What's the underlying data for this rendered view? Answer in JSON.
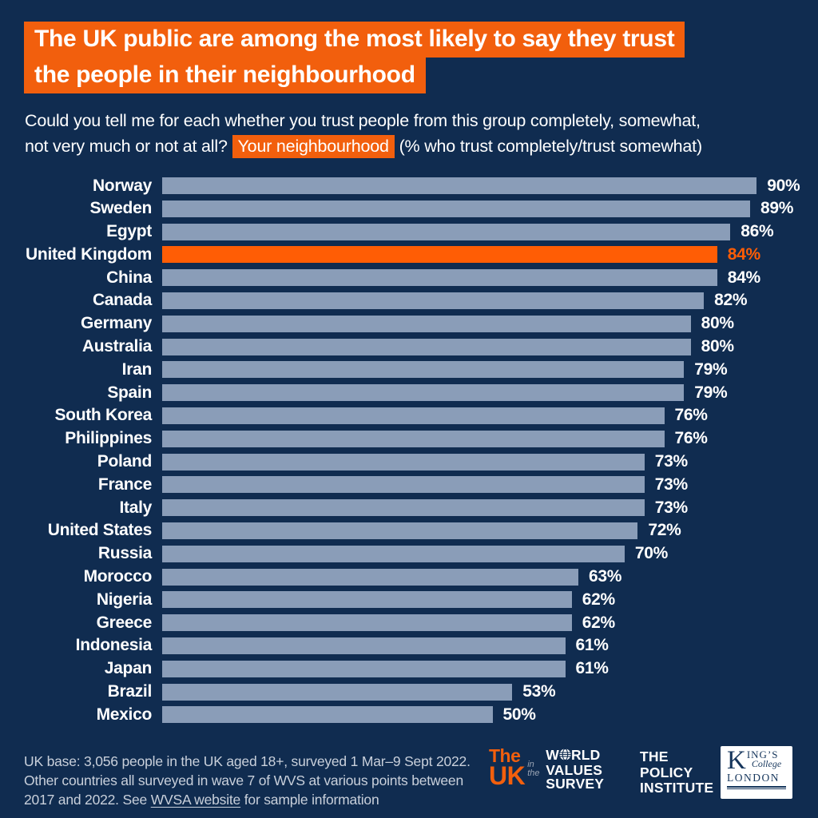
{
  "page": {
    "background": "#102c50"
  },
  "title": {
    "lines": [
      "The UK public are among the most likely to say they trust",
      "the people in their neighbourhood"
    ],
    "highlight_color": "#f25f0d",
    "text_color": "#ffffff"
  },
  "subtitle": {
    "line1": "Could you tell me for each whether you trust people from this group completely, somewhat,",
    "line2_before": "not very much or not at all?",
    "line2_highlight": "Your neighbourhood",
    "line2_after": "(% who trust completely/trust somewhat)"
  },
  "chart_data": {
    "type": "bar",
    "orientation": "horizontal",
    "categories": [
      "Norway",
      "Sweden",
      "Egypt",
      "United Kingdom",
      "China",
      "Canada",
      "Germany",
      "Australia",
      "Iran",
      "Spain",
      "South Korea",
      "Philippines",
      "Poland",
      "France",
      "Italy",
      "United States",
      "Russia",
      "Morocco",
      "Nigeria",
      "Greece",
      "Indonesia",
      "Japan",
      "Brazil",
      "Mexico"
    ],
    "values": [
      90,
      89,
      86,
      84,
      84,
      82,
      80,
      80,
      79,
      79,
      76,
      76,
      73,
      73,
      73,
      72,
      70,
      63,
      62,
      62,
      61,
      61,
      53,
      50
    ],
    "value_suffix": "%",
    "highlight_category": "United Kingdom",
    "xlim": [
      0,
      100
    ],
    "grid": false,
    "legend": "none",
    "bar_color": "#8a9db8",
    "highlight_color": "#ff5d05",
    "label_color": "#ffffff"
  },
  "footer": {
    "line1": "UK base: 3,056 people in the UK aged 18+, surveyed 1 Mar–9 Sept 2022.",
    "line2": "Other countries all surveyed in wave 7 of WVS at various points between",
    "line3_before": "2017 and 2022. See ",
    "line3_link": "WVSA website",
    "line3_after": " for sample information"
  },
  "logos": {
    "uk_wvs": {
      "the": "The",
      "uk": "UK",
      "in_the": "in the",
      "word1_before_globe": "W",
      "word1_after_globe": "RLD",
      "word2": "VALUES",
      "word3": "SURVEY"
    },
    "policy_institute": {
      "line1": "THE",
      "line2": "POLICY",
      "line3": "INSTITUTE"
    },
    "kings_college": {
      "k": "K",
      "ings": "ING’S",
      "college": "College",
      "london": "LONDON"
    }
  }
}
